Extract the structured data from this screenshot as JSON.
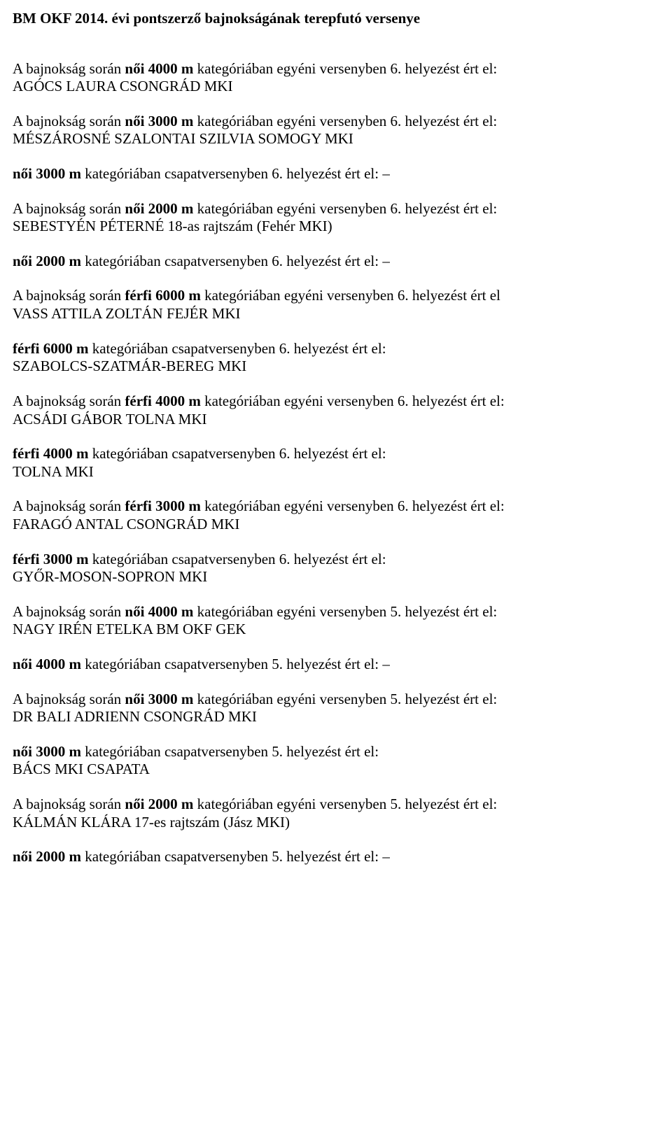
{
  "title": "BM OKF 2014. évi pontszerző bajnokságának terepfutó versenye",
  "entries": [
    {
      "line1a": "A bajnokság során ",
      "line1b": "női 4000 m ",
      "line1c": "kategóriában egyéni versenyben 6. helyezést ért el:",
      "line2": "AGÓCS LAURA CSONGRÁD MKI"
    },
    {
      "line1a": "A bajnokság során ",
      "line1b": "női 3000 m ",
      "line1c": "kategóriában egyéni versenyben 6. helyezést ért el:",
      "line2": "MÉSZÁROSNÉ SZALONTAI SZILVIA SOMOGY MKI"
    },
    {
      "line1b": "női 3000 m ",
      "line1c": "kategóriában csapatversenyben 6. helyezést ért el: –"
    },
    {
      "line1a": "A bajnokság során ",
      "line1b": "női 2000 m ",
      "line1c": "kategóriában egyéni versenyben 6. helyezést ért el:",
      "line2": "SEBESTYÉN PÉTERNÉ 18-as rajtszám (Fehér MKI)"
    },
    {
      "line1b": "női 2000 m ",
      "line1c": "kategóriában csapatversenyben 6. helyezést ért el: –"
    },
    {
      "line1a": "A bajnokság során ",
      "line1b": "férfi 6000 m ",
      "line1c": "kategóriában egyéni versenyben 6. helyezést ért el",
      "line2": "VASS ATTILA ZOLTÁN FEJÉR MKI"
    },
    {
      "line1b": "férfi 6000 m ",
      "line1c": "kategóriában csapatversenyben 6. helyezést ért el:",
      "line2": "SZABOLCS-SZATMÁR-BEREG MKI"
    },
    {
      "line1a": "A bajnokság során ",
      "line1b": "férfi 4000 m ",
      "line1c": "kategóriában egyéni versenyben 6. helyezést ért el:",
      "line2": "ACSÁDI GÁBOR TOLNA MKI"
    },
    {
      "line1b": "férfi 4000 m ",
      "line1c": "kategóriában csapatversenyben 6. helyezést ért el:",
      "line2": "TOLNA MKI"
    },
    {
      "line1a": "A bajnokság során ",
      "line1b": "férfi 3000 m ",
      "line1c": "kategóriában egyéni versenyben 6. helyezést ért el:",
      "line2": "FARAGÓ ANTAL CSONGRÁD MKI"
    },
    {
      "line1b": "férfi 3000 m ",
      "line1c": "kategóriában csapatversenyben 6. helyezést ért el:",
      "line2": "GYŐR-MOSON-SOPRON MKI"
    },
    {
      "line1a": "A bajnokság során ",
      "line1b": "női 4000 m ",
      "line1c": "kategóriában egyéni versenyben 5. helyezést ért el:",
      "line2": "NAGY IRÉN ETELKA BM OKF GEK"
    },
    {
      "line1b": "női 4000 m ",
      "line1c": "kategóriában csapatversenyben 5. helyezést ért el: –"
    },
    {
      "line1a": "A bajnokság során ",
      "line1b": "női 3000 m ",
      "line1c": "kategóriában egyéni versenyben 5. helyezést ért el:",
      "line2": "DR BALI ADRIENN CSONGRÁD MKI"
    },
    {
      "line1b": "női 3000 m ",
      "line1c": "kategóriában csapatversenyben 5. helyezést ért el:",
      "line2": "BÁCS MKI CSAPATA"
    },
    {
      "line1a": "A bajnokság során ",
      "line1b": "női 2000 m ",
      "line1c": "kategóriában egyéni versenyben 5. helyezést ért el:",
      "line2": "KÁLMÁN KLÁRA 17-es rajtszám (Jász MKI)"
    },
    {
      "line1b": "női 2000 m ",
      "line1c": "kategóriában csapatversenyben 5. helyezést ért el: –"
    }
  ]
}
